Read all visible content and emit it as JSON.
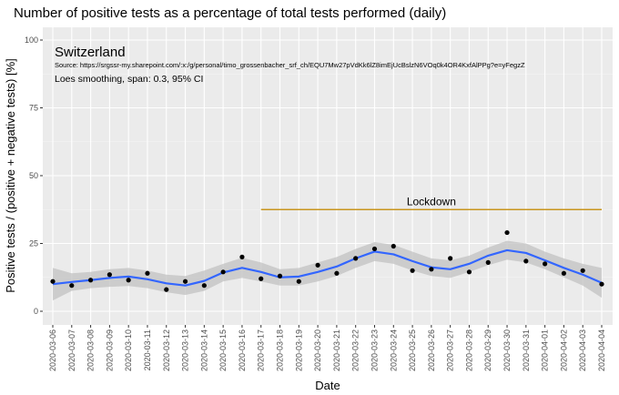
{
  "chart_data": {
    "type": "line",
    "title": "Number of positive tests as a percentage of total tests performed (daily)",
    "xlabel": "Date",
    "ylabel": "Positive tests / (positive + negative tests) [%]",
    "ylim": [
      0,
      100
    ],
    "yticks": [
      0,
      25,
      50,
      75,
      100
    ],
    "grid": true,
    "panel_title": "Switzerland",
    "source": "Source: https://srgssr-my.sharepoint.com/:x:/g/personal/timo_grossenbacher_srf_ch/EQU7Mw27pVdKk6lZ8imEjUcBslzN6VOq0k4OR4KxfAlPPg?e=yFegzZ",
    "smoothing_note": "Loes smoothing, span: 0.3, 95% CI",
    "annotation": {
      "label": "Lockdown",
      "start": "2020-03-17",
      "end": "2020-04-04",
      "y": 37.5
    },
    "categories": [
      "2020-03-06",
      "2020-03-07",
      "2020-03-08",
      "2020-03-09",
      "2020-03-10",
      "2020-03-11",
      "2020-03-12",
      "2020-03-13",
      "2020-03-14",
      "2020-03-15",
      "2020-03-16",
      "2020-03-17",
      "2020-03-18",
      "2020-03-19",
      "2020-03-20",
      "2020-03-21",
      "2020-03-22",
      "2020-03-23",
      "2020-03-24",
      "2020-03-25",
      "2020-03-26",
      "2020-03-27",
      "2020-03-28",
      "2020-03-29",
      "2020-03-30",
      "2020-03-31",
      "2020-04-01",
      "2020-04-02",
      "2020-04-03",
      "2020-04-04"
    ],
    "points": [
      11,
      9.5,
      11.5,
      13.5,
      11.5,
      14,
      8,
      11,
      9.5,
      14.5,
      20,
      12,
      13,
      11,
      17,
      14,
      19.5,
      23,
      24,
      15,
      15.5,
      19.5,
      14.5,
      18,
      29,
      18.5,
      17.5,
      14,
      15,
      10
    ],
    "smooth": [
      10,
      10.8,
      11.5,
      12.3,
      12.8,
      11.8,
      10.3,
      9.5,
      11.2,
      14.3,
      16,
      14.5,
      12.5,
      12.8,
      14.5,
      16.5,
      19.5,
      22,
      21,
      18.5,
      16.2,
      15.5,
      17.5,
      20.5,
      22.5,
      21.5,
      18.8,
      16,
      13.5,
      10.5
    ],
    "ci_lower": [
      4,
      7.5,
      8.5,
      9,
      9.3,
      8.5,
      7,
      6,
      7.5,
      11,
      12.3,
      11,
      9.5,
      9.5,
      11,
      13,
      16,
      18.5,
      17.5,
      15,
      13,
      12.3,
      14.5,
      17,
      19,
      18,
      15.5,
      12.5,
      9.5,
      5
    ],
    "ci_upper": [
      16,
      14,
      14.5,
      15.5,
      16,
      15,
      13.5,
      13,
      15,
      17.5,
      19.7,
      18,
      15.5,
      16,
      18,
      20,
      23,
      25.5,
      24.5,
      22,
      19.5,
      18.8,
      20.5,
      23.5,
      26,
      25,
      22,
      19.5,
      17.5,
      16
    ],
    "colors": {
      "panel": "#ebebeb",
      "grid_major": "#ffffff",
      "grid_minor": "#f4f4f4",
      "point": "#000000",
      "smooth_line": "#3366ff",
      "ci_band": "#c2c2c2",
      "lockdown_line": "#c8961e"
    }
  }
}
